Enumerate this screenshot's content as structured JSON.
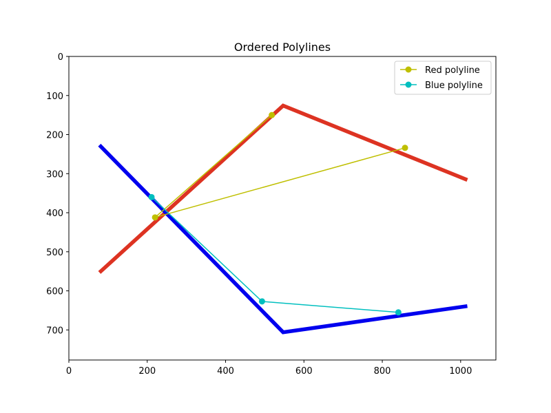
{
  "chart_data": {
    "type": "line",
    "title": "Ordered Polylines",
    "xlabel": "",
    "ylabel": "",
    "xlim": [
      0,
      1090
    ],
    "ylim": [
      777,
      0
    ],
    "y_inverted": true,
    "grid": false,
    "legend_position": "top-right",
    "xticks": [
      0,
      200,
      400,
      600,
      800,
      1000
    ],
    "yticks": [
      0,
      100,
      200,
      300,
      400,
      500,
      600,
      700
    ],
    "thick_lines": [
      {
        "color": "#dd3322",
        "points": [
          [
            78,
            553
          ],
          [
            547,
            126
          ],
          [
            1017,
            316
          ]
        ]
      },
      {
        "color": "#0000ee",
        "points": [
          [
            78,
            227
          ],
          [
            547,
            706
          ],
          [
            1017,
            639
          ]
        ]
      }
    ],
    "series": [
      {
        "name": "Red polyline",
        "color": "#bfbf00",
        "points": [
          [
            518,
            150
          ],
          [
            220,
            412
          ],
          [
            858,
            234
          ]
        ]
      },
      {
        "name": "Blue polyline",
        "color": "#00bfbf",
        "points": [
          [
            211,
            360
          ],
          [
            493,
            627
          ],
          [
            841,
            655
          ]
        ]
      }
    ]
  }
}
